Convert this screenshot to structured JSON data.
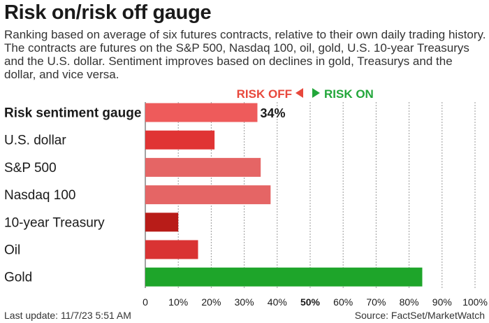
{
  "header": {
    "title": "Risk on/risk off gauge",
    "subtitle": "Ranking based on average of six futures contracts, relative to their own daily trading history. The contracts are futures on the S&P 500, Nasdaq 100, oil, gold, U.S. 10-year Treasurys and the U.S. dollar. Sentiment improves based on declines in gold, Treasurys and the dollar, and vice versa."
  },
  "legend": {
    "risk_off_label": "RISK OFF",
    "risk_on_label": "RISK ON",
    "risk_off_color": "#e8483c",
    "risk_on_color": "#22a63a"
  },
  "footer": {
    "last_update": "Last update: 11/7/23 5:51 AM",
    "source": "Source: FactSet/MarketWatch"
  },
  "chart_data": {
    "type": "bar",
    "orientation": "horizontal",
    "categories": [
      "Risk sentiment gauge",
      "U.S. dollar",
      "S&P 500",
      "Nasdaq 100",
      "10-year Treasury",
      "Oil",
      "Gold"
    ],
    "values": [
      34,
      21,
      35,
      38,
      10,
      16,
      84
    ],
    "colors": [
      "#ee5b5b",
      "#e03434",
      "#e56565",
      "#e56565",
      "#b81c18",
      "#d93333",
      "#1ea52a"
    ],
    "value_labels": [
      "34%",
      "",
      "",
      "",
      "",
      "",
      ""
    ],
    "xlim": [
      0,
      100
    ],
    "x_ticks": [
      0,
      10,
      20,
      30,
      40,
      50,
      60,
      70,
      80,
      90,
      100
    ],
    "x_tick_labels": [
      "0",
      "10%",
      "20%",
      "30%",
      "40%",
      "50%",
      "60%",
      "70%",
      "80%",
      "90%",
      "100%"
    ],
    "bold_tick": 50,
    "grid": true
  }
}
